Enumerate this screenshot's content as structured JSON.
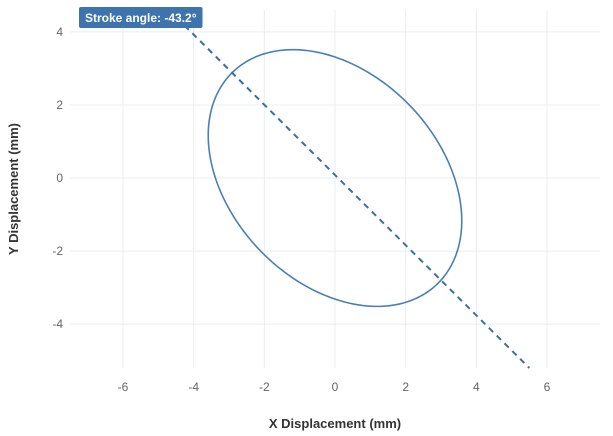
{
  "chart_data": {
    "type": "scatter",
    "title": "",
    "xlabel": "X Displacement (mm)",
    "ylabel": "Y Displacement (mm)",
    "xlim": [
      -7.5,
      7.5
    ],
    "ylim": [
      -5.2,
      4.6
    ],
    "xticks": [
      -6,
      -4,
      -2,
      0,
      2,
      4,
      6
    ],
    "yticks": [
      -4,
      -2,
      0,
      2,
      4
    ],
    "grid": true,
    "annotation": "Stroke angle: -43.2°",
    "stroke_angle_deg": -43.2,
    "ellipse": {
      "center": [
        0,
        0
      ],
      "semi_major_mm": 4.1,
      "semi_minor_mm": 2.9,
      "rotation_deg": -43.2,
      "color": "#4a7fb5"
    },
    "stroke_line": {
      "points": [
        [
          -4.7,
          4.6
        ],
        [
          5.5,
          -5.2
        ]
      ],
      "color": "#3a6fa3",
      "style": "dashed"
    }
  },
  "colors": {
    "grid": "#e8ecf2",
    "badge_bg": "#3d74ad",
    "ellipse": "#4a7fb5",
    "line": "#3a6fa3"
  }
}
